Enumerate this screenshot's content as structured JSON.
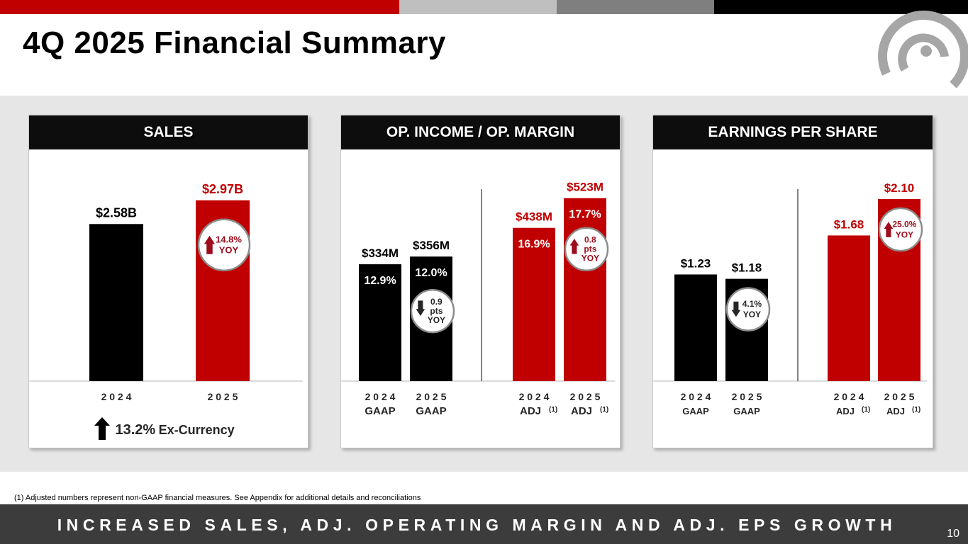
{
  "slide": {
    "title": "4Q 2025 Financial Summary",
    "footnote": "(1)  Adjusted numbers represent non-GAAP financial measures.  See Appendix for additional details and reconciliations",
    "tagline": "INCREASED SALES, ADJ. OPERATING MARGIN AND ADJ. EPS GROWTH",
    "page_number": "10"
  },
  "colors": {
    "red": "#c00000",
    "black": "#000000",
    "dark_red": "#9e0b1c"
  },
  "chart_data": [
    {
      "type": "bar",
      "title": "SALES",
      "categories": [
        "2 0 2 4",
        "2 0 2 5"
      ],
      "values": [
        2.58,
        2.97
      ],
      "value_labels": [
        "$2.58B",
        "$2.97B"
      ],
      "colors": [
        "#000000",
        "#c00000"
      ],
      "ylim": [
        0,
        3.2
      ],
      "badge": {
        "direction": "up",
        "lines": [
          "14.8%",
          "YOY"
        ]
      },
      "ex_currency": {
        "direction": "up",
        "value": "13.2%",
        "label": "Ex-Currency"
      }
    },
    {
      "type": "bar",
      "title": "OP. INCOME / OP. MARGIN",
      "categories": [
        "2 0 2 4",
        "2 0 2 5",
        "2 0 2 4",
        "2 0 2 5"
      ],
      "sublabels": [
        "GAAP",
        "GAAP",
        "ADJ",
        "ADJ"
      ],
      "superscripts": [
        "",
        "",
        "(1)",
        "(1)"
      ],
      "values": [
        334,
        356,
        438,
        523
      ],
      "value_labels": [
        "$334M",
        "$356M",
        "$438M",
        "$523M"
      ],
      "margins": [
        "12.9%",
        "12.0%",
        "16.9%",
        "17.7%"
      ],
      "colors": [
        "#000000",
        "#000000",
        "#c00000",
        "#c00000"
      ],
      "ylim": [
        0,
        565
      ],
      "badges": [
        {
          "bar_index": 1,
          "direction": "down",
          "lines": [
            "0.9",
            "pts",
            "YOY"
          ]
        },
        {
          "bar_index": 3,
          "direction": "up",
          "lines": [
            "0.8",
            "pts",
            "YOY"
          ]
        }
      ]
    },
    {
      "type": "bar",
      "title": "EARNINGS PER SHARE",
      "categories": [
        "2 0 2 4",
        "2 0 2 5",
        "2 0 2 4",
        "2 0 2 5"
      ],
      "sublabels": [
        "GAAP",
        "GAAP",
        "ADJ",
        "ADJ"
      ],
      "superscripts": [
        "",
        "",
        "(1)",
        "(1)"
      ],
      "values": [
        1.23,
        1.18,
        1.68,
        2.1
      ],
      "value_labels": [
        "$1.23",
        "$1.18",
        "$1.68",
        "$2.10"
      ],
      "colors": [
        "#000000",
        "#000000",
        "#c00000",
        "#c00000"
      ],
      "ylim": [
        0,
        2.28
      ],
      "badges": [
        {
          "bar_index": 1,
          "direction": "down",
          "lines": [
            "4.1%",
            "YOY"
          ]
        },
        {
          "bar_index": 3,
          "direction": "up",
          "lines": [
            "25.0%",
            "YOY"
          ]
        }
      ]
    }
  ]
}
